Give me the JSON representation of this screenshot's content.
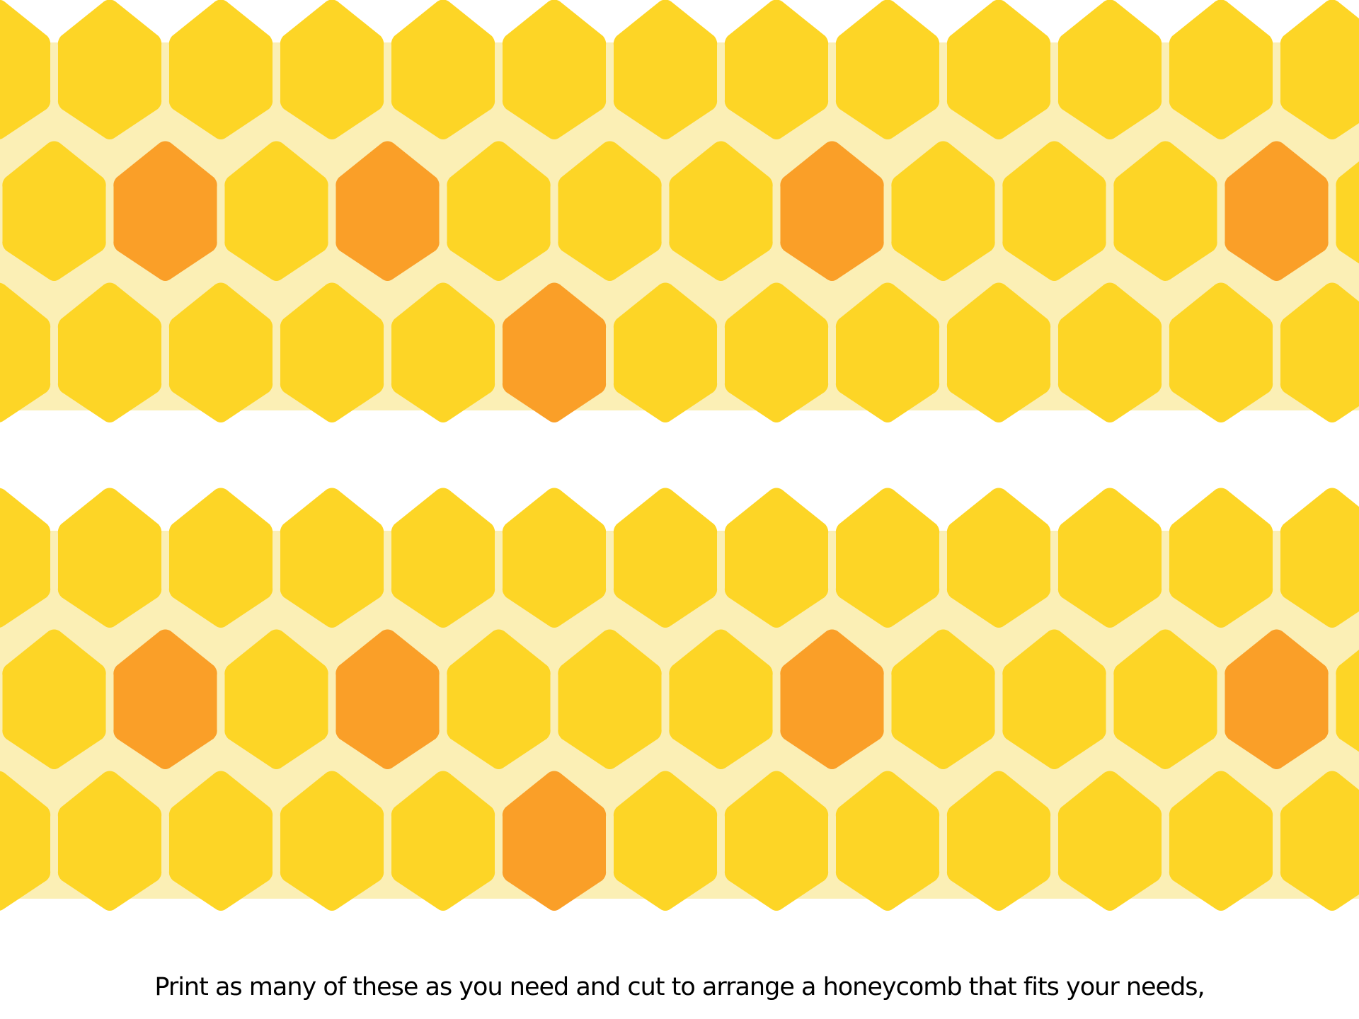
{
  "caption": "Print as many of these as you need and cut to arrange a honeycomb that fits your needs,",
  "colors": {
    "background": "#ffffff",
    "mortar": "#FBEFB5",
    "cell_yellow": "#FDD526",
    "cell_orange": "#FA9F28"
  },
  "strips": [
    {
      "name": "strip-top",
      "orange_cells": [
        [
          1,
          1
        ],
        [
          1,
          3
        ],
        [
          1,
          7
        ],
        [
          1,
          11
        ],
        [
          2,
          4
        ]
      ]
    },
    {
      "name": "strip-bottom",
      "orange_cells": [
        [
          1,
          1
        ],
        [
          1,
          3
        ],
        [
          1,
          7
        ],
        [
          1,
          11
        ],
        [
          2,
          4
        ]
      ]
    }
  ]
}
